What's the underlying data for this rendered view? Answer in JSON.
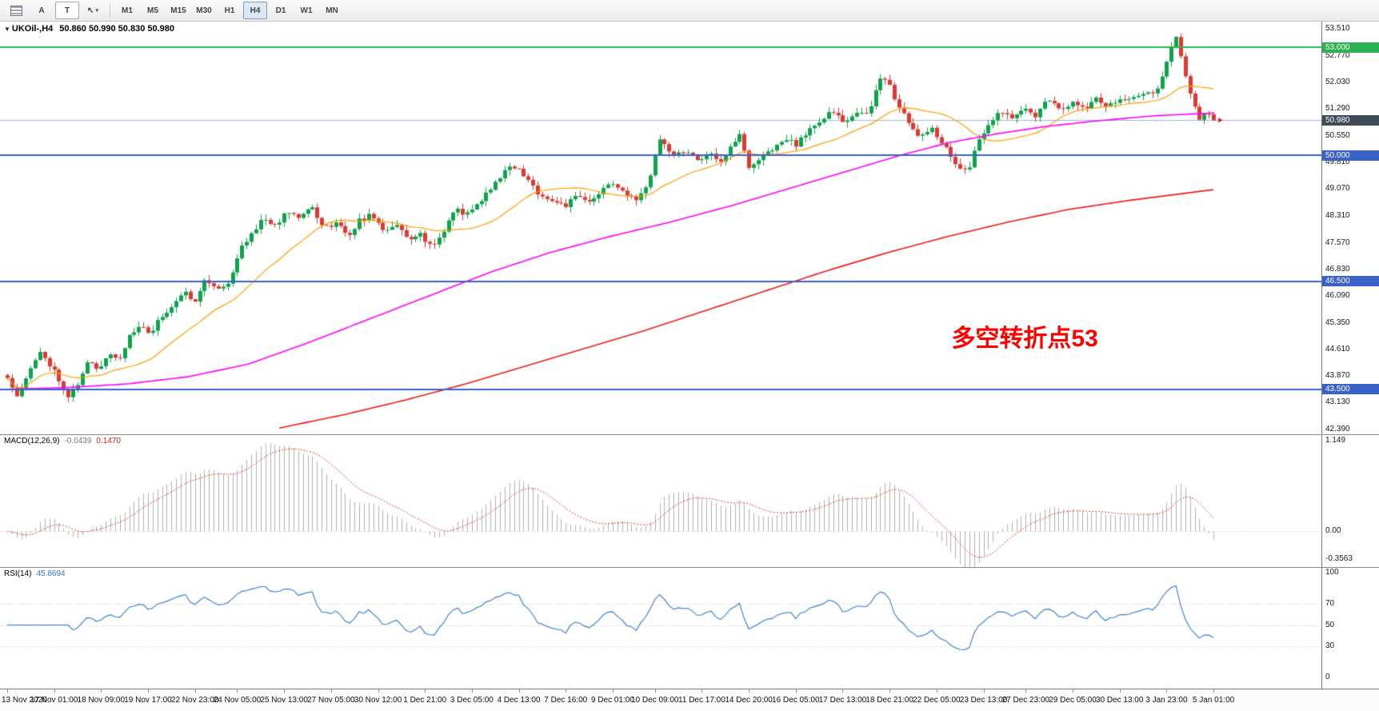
{
  "toolbar": {
    "buttons": [
      {
        "label": "A"
      },
      {
        "label": "T"
      }
    ],
    "timeframes": [
      "M1",
      "M5",
      "M15",
      "M30",
      "H1",
      "H4",
      "D1",
      "W1",
      "MN"
    ],
    "active_timeframe": "H4"
  },
  "chart": {
    "symbol_title": "UKOil-,H4",
    "ohlc": "50.860 50.990 50.830 50.980",
    "annotation": {
      "text": "多空转折点53",
      "color": "#ff0000"
    }
  },
  "macd_panel": {
    "name": "MACD(12,26,9)",
    "value_main": "-0.0439",
    "value_signal": "0.1470",
    "scale": [
      "1.149",
      "0.00",
      "-0.3563"
    ]
  },
  "rsi_panel": {
    "name": "RSI(14)",
    "value": "45.8694",
    "scale": [
      "100",
      "70",
      "50",
      "30",
      "0"
    ]
  },
  "time_axis": {
    "labels": [
      "13 Nov 2020",
      "17 Nov 01:00",
      "18 Nov 09:00",
      "19 Nov 17:00",
      "22 Nov 23:00",
      "24 Nov 05:00",
      "25 Nov 13:00",
      "27 Nov 05:00",
      "30 Nov 12:00",
      "1 Dec 21:00",
      "3 Dec 05:00",
      "4 Dec 13:00",
      "7 Dec 16:00",
      "9 Dec 01:00",
      "10 Dec 09:00",
      "11 Dec 17:00",
      "14 Dec 20:00",
      "16 Dec 05:00",
      "17 Dec 13:00",
      "18 Dec 21:00",
      "22 Dec 05:00",
      "23 Dec 13:00",
      "27 Dec 23:00",
      "29 Dec 05:00",
      "30 Dec 13:00",
      "3 Jan 23:00",
      "5 Jan 01:00"
    ]
  },
  "chart_data": {
    "type": "candlestick",
    "symbol": "UKOil-",
    "timeframe": "H4",
    "current_bar": {
      "open": 50.86,
      "high": 50.99,
      "low": 50.83,
      "close": 50.98
    },
    "y_ticks": [
      "53.510",
      "52.770",
      "52.030",
      "51.290",
      "50.550",
      "49.810",
      "49.070",
      "48.310",
      "47.570",
      "46.830",
      "46.090",
      "45.350",
      "44.610",
      "43.870",
      "43.130",
      "42.390"
    ],
    "y_range": [
      42.25,
      53.72
    ],
    "hlines": [
      {
        "price": 53.0,
        "label": "53.000",
        "color": "#2db252"
      },
      {
        "price": 50.0,
        "label": "50.000",
        "color": "#3a62c8"
      },
      {
        "price": 46.5,
        "label": "46.500",
        "color": "#3a62c8"
      },
      {
        "price": 43.5,
        "label": "43.500",
        "color": "#3a62c8"
      }
    ],
    "bid": {
      "price": 50.98,
      "label": "50.980",
      "line_color": "#9bb7d4",
      "badge_color": "#3f4b57"
    },
    "annotation_pos": {
      "x_frac": 0.72,
      "price": 45.0
    },
    "candles_n": 258,
    "noise": 0.14,
    "wick": 0.16,
    "seed": 11,
    "close_path": [
      [
        0,
        43.85
      ],
      [
        0.008,
        43.35
      ],
      [
        0.02,
        44.1
      ],
      [
        0.028,
        44.55
      ],
      [
        0.04,
        43.95
      ],
      [
        0.051,
        43.3
      ],
      [
        0.06,
        43.75
      ],
      [
        0.067,
        44.3
      ],
      [
        0.075,
        44.0
      ],
      [
        0.084,
        44.55
      ],
      [
        0.092,
        44.3
      ],
      [
        0.1,
        44.9
      ],
      [
        0.11,
        45.3
      ],
      [
        0.118,
        45.0
      ],
      [
        0.127,
        45.5
      ],
      [
        0.14,
        45.95
      ],
      [
        0.147,
        46.2
      ],
      [
        0.155,
        45.95
      ],
      [
        0.163,
        46.55
      ],
      [
        0.175,
        46.3
      ],
      [
        0.183,
        46.45
      ],
      [
        0.195,
        47.5
      ],
      [
        0.205,
        47.95
      ],
      [
        0.213,
        48.3
      ],
      [
        0.222,
        48.0
      ],
      [
        0.232,
        48.5
      ],
      [
        0.24,
        48.3
      ],
      [
        0.252,
        48.6
      ],
      [
        0.262,
        47.95
      ],
      [
        0.272,
        48.15
      ],
      [
        0.282,
        47.75
      ],
      [
        0.292,
        48.2
      ],
      [
        0.302,
        48.35
      ],
      [
        0.312,
        47.9
      ],
      [
        0.322,
        48.1
      ],
      [
        0.332,
        47.65
      ],
      [
        0.342,
        47.85
      ],
      [
        0.352,
        47.4
      ],
      [
        0.362,
        47.95
      ],
      [
        0.372,
        48.5
      ],
      [
        0.382,
        48.35
      ],
      [
        0.392,
        48.75
      ],
      [
        0.402,
        49.1
      ],
      [
        0.412,
        49.6
      ],
      [
        0.422,
        49.7
      ],
      [
        0.432,
        49.25
      ],
      [
        0.442,
        48.9
      ],
      [
        0.452,
        48.75
      ],
      [
        0.462,
        48.6
      ],
      [
        0.472,
        48.85
      ],
      [
        0.482,
        48.7
      ],
      [
        0.492,
        49.0
      ],
      [
        0.502,
        49.25
      ],
      [
        0.512,
        48.9
      ],
      [
        0.522,
        48.7
      ],
      [
        0.532,
        49.3
      ],
      [
        0.54,
        50.55
      ],
      [
        0.552,
        50.0
      ],
      [
        0.562,
        50.15
      ],
      [
        0.572,
        49.9
      ],
      [
        0.582,
        50.05
      ],
      [
        0.592,
        49.85
      ],
      [
        0.602,
        50.35
      ],
      [
        0.608,
        50.6
      ],
      [
        0.614,
        49.6
      ],
      [
        0.624,
        49.9
      ],
      [
        0.634,
        50.2
      ],
      [
        0.644,
        50.45
      ],
      [
        0.654,
        50.3
      ],
      [
        0.664,
        50.7
      ],
      [
        0.674,
        51.0
      ],
      [
        0.684,
        51.2
      ],
      [
        0.694,
        50.9
      ],
      [
        0.704,
        51.15
      ],
      [
        0.714,
        51.25
      ],
      [
        0.723,
        52.05
      ],
      [
        0.729,
        52.2
      ],
      [
        0.736,
        51.5
      ],
      [
        0.746,
        50.95
      ],
      [
        0.756,
        50.45
      ],
      [
        0.766,
        50.75
      ],
      [
        0.776,
        50.3
      ],
      [
        0.786,
        49.8
      ],
      [
        0.796,
        49.5
      ],
      [
        0.803,
        50.3
      ],
      [
        0.813,
        50.9
      ],
      [
        0.823,
        51.2
      ],
      [
        0.833,
        51.0
      ],
      [
        0.843,
        51.35
      ],
      [
        0.853,
        51.1
      ],
      [
        0.863,
        51.6
      ],
      [
        0.873,
        51.2
      ],
      [
        0.882,
        51.45
      ],
      [
        0.892,
        51.3
      ],
      [
        0.902,
        51.55
      ],
      [
        0.912,
        51.4
      ],
      [
        0.922,
        51.6
      ],
      [
        0.931,
        51.5
      ],
      [
        0.941,
        51.75
      ],
      [
        0.951,
        51.65
      ],
      [
        0.958,
        52.25
      ],
      [
        0.964,
        52.95
      ],
      [
        0.969,
        53.3
      ],
      [
        0.974,
        52.6
      ],
      [
        0.979,
        51.9
      ],
      [
        0.984,
        51.35
      ],
      [
        0.989,
        51.0
      ],
      [
        0.994,
        51.15
      ],
      [
        1,
        50.98
      ]
    ],
    "ma_lines": [
      {
        "name": "ma-fast",
        "type": "sma",
        "period": 20,
        "color": "#ff9d00",
        "width": 1.2
      },
      {
        "name": "ma-mid",
        "type": "path",
        "color": "#ff00ff",
        "width": 1.6,
        "path": [
          [
            0,
            43.5
          ],
          [
            0.05,
            43.55
          ],
          [
            0.1,
            43.65
          ],
          [
            0.15,
            43.85
          ],
          [
            0.2,
            44.2
          ],
          [
            0.25,
            44.8
          ],
          [
            0.3,
            45.45
          ],
          [
            0.35,
            46.1
          ],
          [
            0.4,
            46.75
          ],
          [
            0.45,
            47.3
          ],
          [
            0.5,
            47.75
          ],
          [
            0.55,
            48.15
          ],
          [
            0.6,
            48.6
          ],
          [
            0.65,
            49.1
          ],
          [
            0.7,
            49.6
          ],
          [
            0.74,
            50.0
          ],
          [
            0.78,
            50.35
          ],
          [
            0.82,
            50.6
          ],
          [
            0.86,
            50.8
          ],
          [
            0.9,
            50.95
          ],
          [
            0.95,
            51.1
          ],
          [
            1,
            51.18
          ]
        ]
      },
      {
        "name": "ma-slow",
        "type": "path",
        "color": "#ee1c1c",
        "width": 1.6,
        "path": [
          [
            0.225,
            42.42
          ],
          [
            0.28,
            42.8
          ],
          [
            0.33,
            43.2
          ],
          [
            0.38,
            43.65
          ],
          [
            0.43,
            44.15
          ],
          [
            0.48,
            44.65
          ],
          [
            0.53,
            45.15
          ],
          [
            0.58,
            45.7
          ],
          [
            0.63,
            46.25
          ],
          [
            0.68,
            46.8
          ],
          [
            0.73,
            47.3
          ],
          [
            0.78,
            47.75
          ],
          [
            0.83,
            48.15
          ],
          [
            0.88,
            48.5
          ],
          [
            0.93,
            48.75
          ],
          [
            1,
            49.05
          ]
        ]
      }
    ],
    "colors": {
      "up": "#0fa34d",
      "down": "#dc3a33",
      "bg": "#ffffff"
    },
    "macd": {
      "fast": 12,
      "slow": 26,
      "signal": 9,
      "max": 1.149,
      "min": -0.3563,
      "hist_color": "#b0b0b0",
      "signal_color": "#e23b2e"
    },
    "rsi": {
      "period": 14,
      "value": 45.8694,
      "color": "#3079d1",
      "levels": [
        70,
        50,
        30
      ]
    }
  }
}
